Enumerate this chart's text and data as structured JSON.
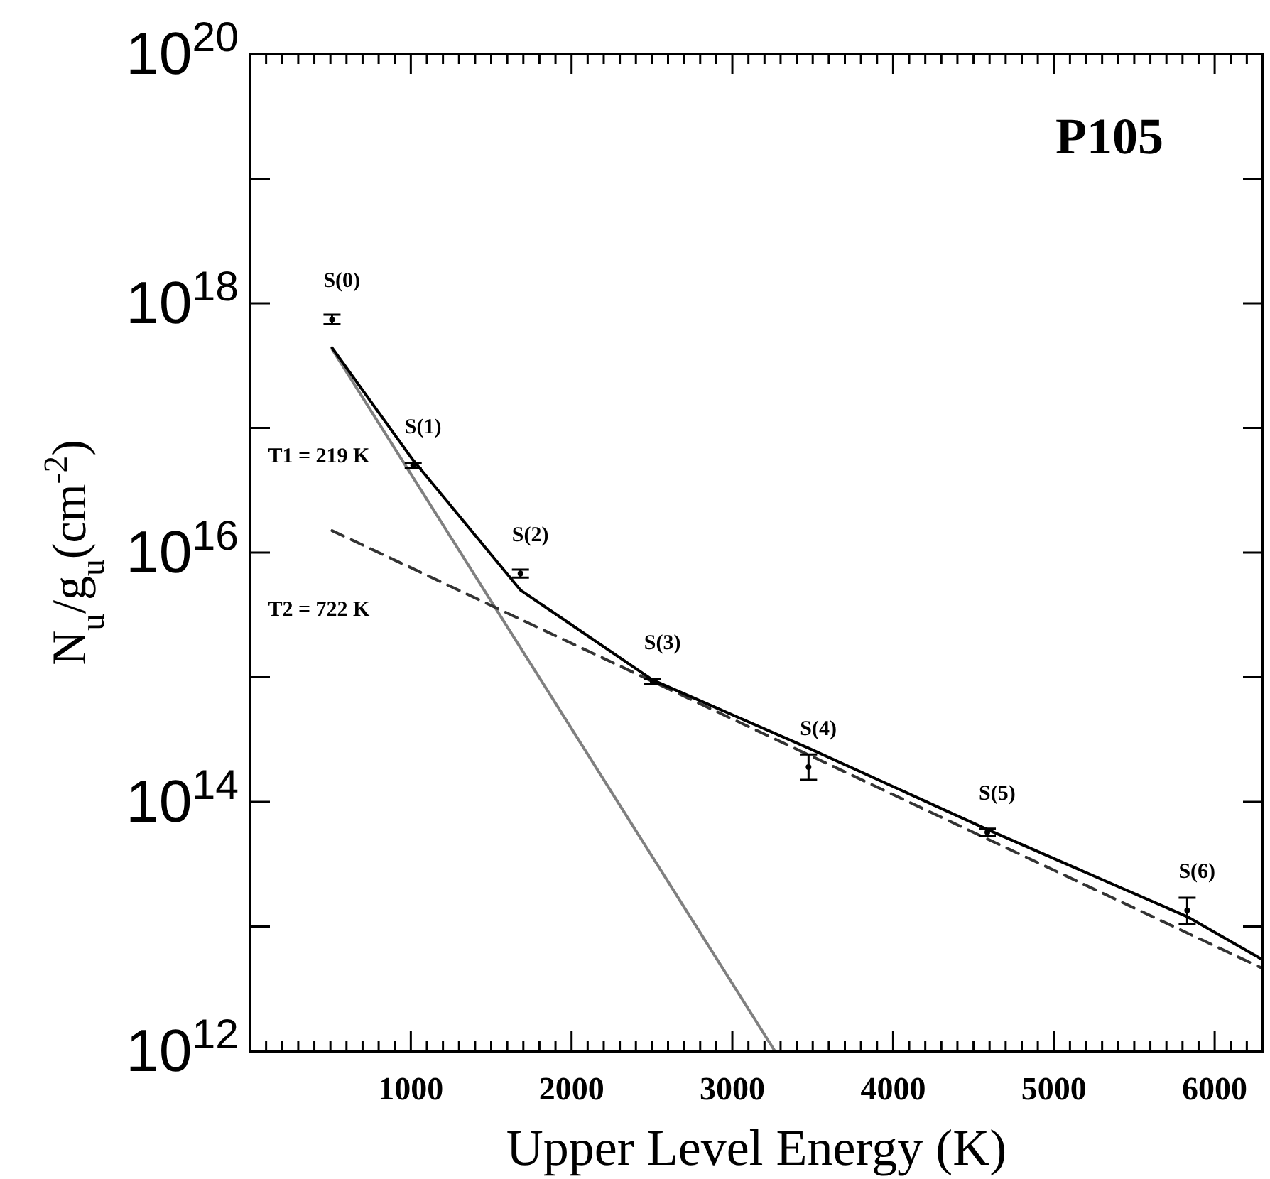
{
  "chart_data": {
    "type": "scatter",
    "title": "P105",
    "xlabel": "Upper Level Energy (K)",
    "ylabel": "N$_{u}$/g$_{u}$(cm$^{-2}$)",
    "log": "y",
    "grid": false,
    "xlim": [
      0,
      6300
    ],
    "ylim": [
      1000000000000.0,
      1e+20
    ],
    "xticks": [
      {
        "value": 100,
        "label": null
      },
      {
        "value": 200,
        "label": null
      },
      {
        "value": 300,
        "label": null
      },
      {
        "value": 400,
        "label": null
      },
      {
        "value": 500,
        "label": null
      },
      {
        "value": 600,
        "label": null
      },
      {
        "value": 700,
        "label": null
      },
      {
        "value": 800,
        "label": null
      },
      {
        "value": 900,
        "label": null
      },
      1000,
      {
        "value": 1100,
        "label": null
      },
      {
        "value": 1200,
        "label": null
      },
      {
        "value": 1300,
        "label": null
      },
      {
        "value": 1400,
        "label": null
      },
      {
        "value": 1500,
        "label": null
      },
      {
        "value": 1600,
        "label": null
      },
      {
        "value": 1700,
        "label": null
      },
      {
        "value": 1800,
        "label": null
      },
      {
        "value": 1900,
        "label": null
      },
      2000,
      {
        "value": 2100,
        "label": null
      },
      {
        "value": 2200,
        "label": null
      },
      {
        "value": 2300,
        "label": null
      },
      {
        "value": 2400,
        "label": null
      },
      {
        "value": 2500,
        "label": null
      },
      {
        "value": 2600,
        "label": null
      },
      {
        "value": 2700,
        "label": null
      },
      {
        "value": 2800,
        "label": null
      },
      {
        "value": 2900,
        "label": null
      },
      3000,
      {
        "value": 3100,
        "label": null
      },
      {
        "value": 3200,
        "label": null
      },
      {
        "value": 3300,
        "label": null
      },
      {
        "value": 3400,
        "label": null
      },
      {
        "value": 3500,
        "label": null
      },
      {
        "value": 3600,
        "label": null
      },
      {
        "value": 3700,
        "label": null
      },
      {
        "value": 3800,
        "label": null
      },
      {
        "value": 3900,
        "label": null
      },
      4000,
      {
        "value": 4100,
        "label": null
      },
      {
        "value": 4200,
        "label": null
      },
      {
        "value": 4300,
        "label": null
      },
      {
        "value": 4400,
        "label": null
      },
      {
        "value": 4500,
        "label": null
      },
      {
        "value": 4600,
        "label": null
      },
      {
        "value": 4700,
        "label": null
      },
      {
        "value": 4800,
        "label": null
      },
      {
        "value": 4900,
        "label": null
      },
      5000,
      {
        "value": 5100,
        "label": null
      },
      {
        "value": 5200,
        "label": null
      },
      {
        "value": 5300,
        "label": null
      },
      {
        "value": 5400,
        "label": null
      },
      {
        "value": 5500,
        "label": null
      },
      {
        "value": 5600,
        "label": null
      },
      {
        "value": 5700,
        "label": null
      },
      {
        "value": 5800,
        "label": null
      },
      {
        "value": 5900,
        "label": null
      },
      6000,
      {
        "value": 6100,
        "label": null
      },
      {
        "value": 6200,
        "label": null
      }
    ],
    "yticks": [
      {
        "value": 1000000000000.0,
        "label": "10$^{12}$"
      },
      {
        "value": 10000000000000.0,
        "label": null
      },
      {
        "value": 100000000000000.0,
        "label": "10$^{14}$"
      },
      {
        "value": 1000000000000000.0,
        "label": null
      },
      {
        "value": 1e+16,
        "label": "10$^{16}$"
      },
      {
        "value": 1e+17,
        "label": null
      },
      {
        "value": 1e+18,
        "label": "10$^{18}$"
      },
      {
        "value": 1e+19,
        "label": null
      },
      {
        "value": 1e+20,
        "label": "10$^{20}$"
      }
    ],
    "series": [
      {
        "type": "line",
        "name": "T1 = 219 K",
        "color": "#808080",
        "line_style": "solid",
        "x": [
          510,
          3265
        ],
        "values": [
          4.3e+17,
          1000000000000.0
        ]
      },
      {
        "type": "line",
        "name": "T2 = 722 K",
        "color": "#333333",
        "line_style": "dashed",
        "x": [
          510,
          6300
        ],
        "values": [
          1.5e+16,
          4600000000000.0
        ]
      },
      {
        "type": "line",
        "color": "#000000",
        "line_style": "solid",
        "x": [
          510,
          1015,
          1682,
          2504,
          3474,
          4586,
          5829,
          6300
        ],
        "values": [
          4.4e+17,
          5.5e+16,
          5000000000000000.0,
          950000000000000.0,
          270000000000000.0,
          60000000000000.0,
          12000000000000.0,
          5400000000000.0
        ]
      },
      {
        "marker": "circle",
        "color": "#000000",
        "x": [
          510,
          1015,
          1682,
          2504,
          3474,
          4586,
          5829
        ],
        "values": [
          7.4e+17,
          5e+16,
          6800000000000000.0,
          930000000000000.0,
          190000000000000.0,
          57000000000000.0,
          13500000000000.0
        ],
        "errors": [
          [
            6.8e+17,
            8.1e+17
          ],
          [
            4.8e+16,
            5.2e+16
          ],
          [
            6300000000000000.0,
            7300000000000000.0
          ],
          [
            890000000000000.0,
            970000000000000.0
          ],
          [
            150000000000000.0,
            240000000000000.0
          ],
          [
            53000000000000.0,
            61000000000000.0
          ],
          [
            10500000000000.0,
            17000000000000.0
          ]
        ]
      }
    ],
    "annotations": [
      {
        "text": "S(0)",
        "x": 510,
        "y": 7.4e+17
      },
      {
        "text": "S(1)",
        "x": 1015,
        "y": 5e+16
      },
      {
        "text": "S(2)",
        "x": 1682,
        "y": 6800000000000000.0
      },
      {
        "text": "S(3)",
        "x": 2504,
        "y": 930000000000000.0
      },
      {
        "text": "S(4)",
        "x": 3474,
        "y": 190000000000000.0
      },
      {
        "text": "S(5)",
        "x": 4586,
        "y": 57000000000000.0
      },
      {
        "text": "S(6)",
        "x": 5829,
        "y": 13500000000000.0
      }
    ]
  }
}
